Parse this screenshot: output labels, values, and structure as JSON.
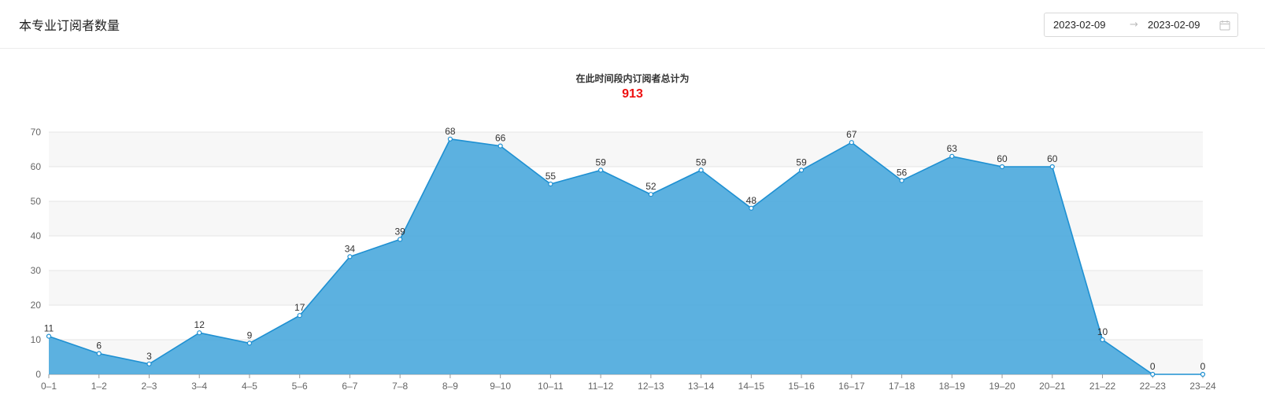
{
  "header": {
    "title": "本专业订阅者数量",
    "date_range": {
      "start": "2023-02-09",
      "separator": "→",
      "end": "2023-02-09"
    },
    "icons": {
      "calendar": "calendar-icon"
    }
  },
  "summary": {
    "caption": "在此时间段内订阅者总计为",
    "total": "913"
  },
  "chart_data": {
    "type": "area",
    "title": "",
    "xlabel": "",
    "ylabel": "",
    "categories": [
      "0–1",
      "1–2",
      "2–3",
      "3–4",
      "4–5",
      "5–6",
      "6–7",
      "7–8",
      "8–9",
      "9–10",
      "10–11",
      "11–12",
      "12–13",
      "13–14",
      "14–15",
      "15–16",
      "16–17",
      "17–18",
      "18–19",
      "19–20",
      "20–21",
      "21–22",
      "22–23",
      "23–24"
    ],
    "series": [
      {
        "values": [
          11,
          6,
          3,
          12,
          9,
          17,
          34,
          39,
          68,
          66,
          55,
          59,
          52,
          59,
          48,
          59,
          67,
          56,
          63,
          60,
          60,
          10,
          0,
          0
        ]
      }
    ],
    "ylim": [
      0,
      70
    ],
    "yticks": [
      0,
      10,
      20,
      30,
      40,
      50,
      60,
      70
    ],
    "grid": true,
    "legend": "none",
    "data_labels": true,
    "colors": {
      "line": "#1e90d2",
      "fill": "#4aa9dd",
      "band": "#f7f7f7",
      "grid": "#e4e4e4"
    }
  }
}
